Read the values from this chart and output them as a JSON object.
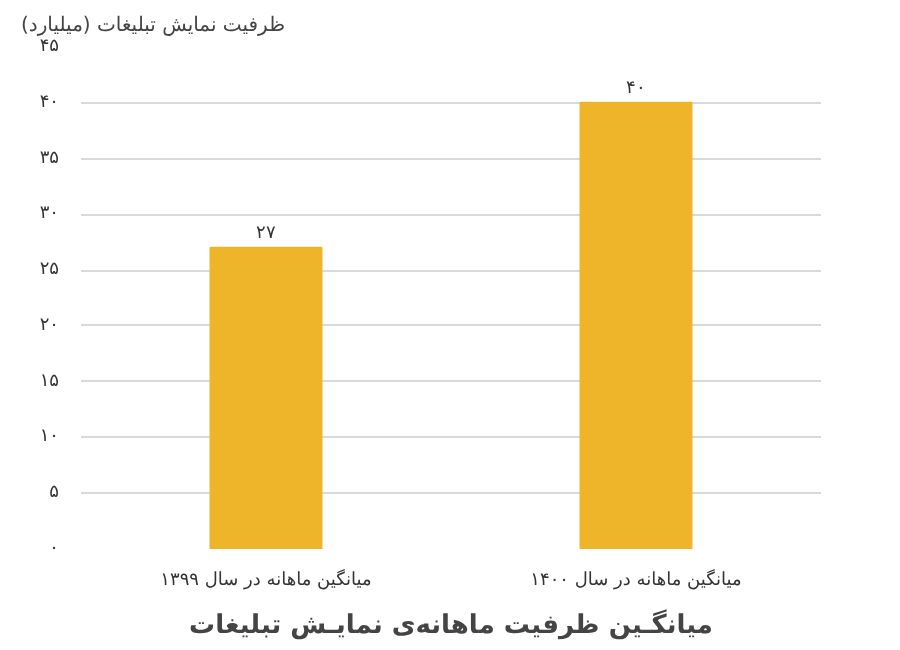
{
  "chart_data": {
    "type": "bar",
    "title": "میانگـین ظرفیت ماهانه‌ی نمایـش تبلیغات",
    "ylabel": "ظرفیت نمایش تبلیغات (میلیارد)",
    "categories": [
      "میانگین ماهانه در سال ۱۳۹۹",
      "میانگین ماهانه در سال ۱۴۰۰"
    ],
    "values": [
      27,
      40
    ],
    "color": "#efb52a",
    "value_labels": [
      "۲۷",
      "۴۰"
    ],
    "ylim": [
      0,
      45
    ],
    "yticks": [
      {
        "value": 0,
        "label": "۰"
      },
      {
        "value": 5,
        "label": "۵"
      },
      {
        "value": 10,
        "label": "۱۰"
      },
      {
        "value": 15,
        "label": "۱۵"
      },
      {
        "value": 20,
        "label": "۲۰"
      },
      {
        "value": 25,
        "label": "۲۵"
      },
      {
        "value": 30,
        "label": "۳۰"
      },
      {
        "value": 35,
        "label": "۳۵"
      },
      {
        "value": 40,
        "label": "۴۰"
      },
      {
        "value": 45,
        "label": "۴۵"
      }
    ],
    "grid": "y"
  }
}
